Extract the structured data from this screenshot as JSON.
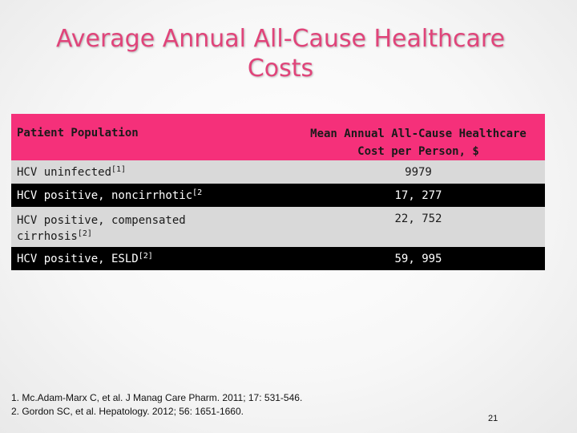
{
  "slide": {
    "title_line1": "Average Annual All-Cause Healthcare",
    "title_line2": "Costs",
    "page_number": "21"
  },
  "table": {
    "header_left": "Patient Population",
    "header_right_line1": "Mean Annual All-Cause Healthcare",
    "header_right_line2": "Cost per Person, $",
    "rows": [
      {
        "population": "HCV uninfected",
        "ref": "[1]",
        "cost": "9979"
      },
      {
        "population": "HCV positive, noncirrhotic",
        "ref": "[2",
        "cost": "17, 277"
      },
      {
        "population_line1": "HCV positive, compensated",
        "population_line2": "cirrhosis",
        "ref": "[2]",
        "cost": "22, 752"
      },
      {
        "population": "HCV positive, ESLD",
        "ref": "[2]",
        "cost": "59, 995"
      }
    ]
  },
  "references": [
    "1. Mc.Adam-Marx C, et al. J Manag Care Pharm. 2011; 17: 531-546.",
    "2. Gordon SC, et al. Hepatology. 2012; 56: 1651-1660."
  ],
  "colors": {
    "accent_pink": "#f5307a",
    "title_pink": "#e0447a",
    "row_gray": "#d9d9d9",
    "row_black": "#000000"
  }
}
